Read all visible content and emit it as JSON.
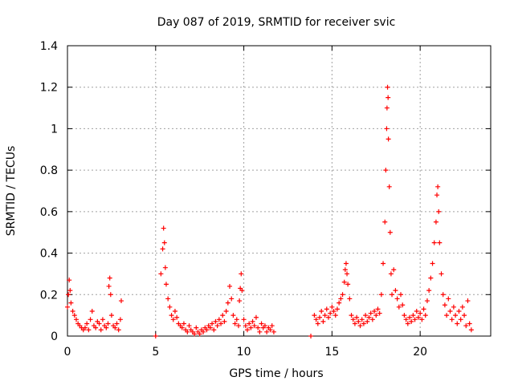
{
  "chart_data": {
    "type": "scatter",
    "title": "Day 087 of 2019, SRMTID for receiver svic",
    "xlabel": "GPS time / hours",
    "ylabel": "SRMTID / TECUs",
    "xlim": [
      0,
      24
    ],
    "ylim": [
      0,
      1.4
    ],
    "xticks": [
      0,
      5,
      10,
      15,
      20
    ],
    "xtick_labels": [
      "0",
      "5",
      "10",
      "15",
      "20"
    ],
    "yticks": [
      0,
      0.2,
      0.4,
      0.6,
      0.8,
      1.0,
      1.2,
      1.4
    ],
    "ytick_labels": [
      "0",
      "0.2",
      "0.4",
      "0.6",
      "0.8",
      "1",
      "1.2",
      "1.4"
    ],
    "grid": true,
    "marker": "+",
    "color": "#ff0000",
    "series": [
      {
        "name": "SRMTID",
        "points": [
          [
            0.0,
            0.14
          ],
          [
            0.05,
            0.2
          ],
          [
            0.1,
            0.27
          ],
          [
            0.15,
            0.22
          ],
          [
            0.2,
            0.16
          ],
          [
            0.3,
            0.12
          ],
          [
            0.4,
            0.1
          ],
          [
            0.5,
            0.08
          ],
          [
            0.6,
            0.06
          ],
          [
            0.7,
            0.05
          ],
          [
            0.8,
            0.04
          ],
          [
            0.9,
            0.03
          ],
          [
            1.0,
            0.04
          ],
          [
            1.1,
            0.06
          ],
          [
            1.2,
            0.03
          ],
          [
            1.3,
            0.08
          ],
          [
            1.4,
            0.12
          ],
          [
            1.5,
            0.05
          ],
          [
            1.6,
            0.04
          ],
          [
            1.7,
            0.07
          ],
          [
            1.8,
            0.06
          ],
          [
            1.9,
            0.03
          ],
          [
            2.0,
            0.08
          ],
          [
            2.1,
            0.05
          ],
          [
            2.2,
            0.04
          ],
          [
            2.3,
            0.06
          ],
          [
            2.35,
            0.24
          ],
          [
            2.4,
            0.28
          ],
          [
            2.45,
            0.2
          ],
          [
            2.5,
            0.1
          ],
          [
            2.6,
            0.05
          ],
          [
            2.7,
            0.04
          ],
          [
            2.8,
            0.06
          ],
          [
            2.9,
            0.03
          ],
          [
            3.0,
            0.08
          ],
          [
            3.05,
            0.17
          ],
          [
            5.0,
            0.0
          ],
          [
            5.3,
            0.3
          ],
          [
            5.4,
            0.42
          ],
          [
            5.45,
            0.52
          ],
          [
            5.5,
            0.45
          ],
          [
            5.55,
            0.33
          ],
          [
            5.6,
            0.25
          ],
          [
            5.7,
            0.18
          ],
          [
            5.8,
            0.14
          ],
          [
            5.9,
            0.1
          ],
          [
            6.0,
            0.08
          ],
          [
            6.1,
            0.12
          ],
          [
            6.2,
            0.09
          ],
          [
            6.3,
            0.06
          ],
          [
            6.4,
            0.05
          ],
          [
            6.5,
            0.04
          ],
          [
            6.6,
            0.06
          ],
          [
            6.7,
            0.03
          ],
          [
            6.8,
            0.02
          ],
          [
            6.9,
            0.05
          ],
          [
            7.0,
            0.03
          ],
          [
            7.1,
            0.02
          ],
          [
            7.2,
            0.01
          ],
          [
            7.3,
            0.04
          ],
          [
            7.4,
            0.02
          ],
          [
            7.5,
            0.01
          ],
          [
            7.6,
            0.03
          ],
          [
            7.7,
            0.02
          ],
          [
            7.8,
            0.04
          ],
          [
            7.9,
            0.03
          ],
          [
            8.0,
            0.05
          ],
          [
            8.1,
            0.04
          ],
          [
            8.2,
            0.06
          ],
          [
            8.3,
            0.03
          ],
          [
            8.4,
            0.07
          ],
          [
            8.5,
            0.05
          ],
          [
            8.6,
            0.08
          ],
          [
            8.7,
            0.06
          ],
          [
            8.8,
            0.1
          ],
          [
            8.9,
            0.07
          ],
          [
            9.0,
            0.12
          ],
          [
            9.1,
            0.16
          ],
          [
            9.2,
            0.24
          ],
          [
            9.3,
            0.18
          ],
          [
            9.4,
            0.1
          ],
          [
            9.5,
            0.06
          ],
          [
            9.6,
            0.08
          ],
          [
            9.7,
            0.05
          ],
          [
            9.75,
            0.17
          ],
          [
            9.8,
            0.23
          ],
          [
            9.85,
            0.3
          ],
          [
            9.9,
            0.22
          ],
          [
            10.0,
            0.08
          ],
          [
            10.1,
            0.05
          ],
          [
            10.2,
            0.03
          ],
          [
            10.3,
            0.06
          ],
          [
            10.4,
            0.04
          ],
          [
            10.5,
            0.07
          ],
          [
            10.6,
            0.05
          ],
          [
            10.7,
            0.09
          ],
          [
            10.8,
            0.04
          ],
          [
            10.9,
            0.02
          ],
          [
            11.0,
            0.06
          ],
          [
            11.1,
            0.04
          ],
          [
            11.2,
            0.05
          ],
          [
            11.3,
            0.02
          ],
          [
            11.4,
            0.04
          ],
          [
            11.5,
            0.03
          ],
          [
            11.6,
            0.05
          ],
          [
            11.7,
            0.02
          ],
          [
            13.8,
            0.0
          ],
          [
            14.0,
            0.1
          ],
          [
            14.1,
            0.08
          ],
          [
            14.2,
            0.06
          ],
          [
            14.3,
            0.09
          ],
          [
            14.4,
            0.12
          ],
          [
            14.5,
            0.07
          ],
          [
            14.6,
            0.1
          ],
          [
            14.7,
            0.13
          ],
          [
            14.8,
            0.09
          ],
          [
            14.9,
            0.11
          ],
          [
            15.0,
            0.14
          ],
          [
            15.1,
            0.12
          ],
          [
            15.2,
            0.1
          ],
          [
            15.3,
            0.13
          ],
          [
            15.4,
            0.16
          ],
          [
            15.5,
            0.18
          ],
          [
            15.6,
            0.2
          ],
          [
            15.7,
            0.26
          ],
          [
            15.75,
            0.32
          ],
          [
            15.8,
            0.35
          ],
          [
            15.85,
            0.3
          ],
          [
            15.9,
            0.25
          ],
          [
            16.0,
            0.18
          ],
          [
            16.1,
            0.1
          ],
          [
            16.2,
            0.08
          ],
          [
            16.3,
            0.06
          ],
          [
            16.4,
            0.09
          ],
          [
            16.5,
            0.07
          ],
          [
            16.6,
            0.05
          ],
          [
            16.7,
            0.08
          ],
          [
            16.8,
            0.06
          ],
          [
            16.9,
            0.1
          ],
          [
            17.0,
            0.07
          ],
          [
            17.1,
            0.09
          ],
          [
            17.2,
            0.11
          ],
          [
            17.3,
            0.08
          ],
          [
            17.4,
            0.12
          ],
          [
            17.5,
            0.1
          ],
          [
            17.6,
            0.13
          ],
          [
            17.7,
            0.11
          ],
          [
            17.8,
            0.2
          ],
          [
            17.9,
            0.35
          ],
          [
            18.0,
            0.55
          ],
          [
            18.05,
            0.8
          ],
          [
            18.1,
            1.0
          ],
          [
            18.12,
            1.1
          ],
          [
            18.15,
            1.2
          ],
          [
            18.18,
            1.15
          ],
          [
            18.2,
            0.95
          ],
          [
            18.25,
            0.72
          ],
          [
            18.3,
            0.5
          ],
          [
            18.35,
            0.3
          ],
          [
            18.4,
            0.2
          ],
          [
            18.5,
            0.32
          ],
          [
            18.6,
            0.22
          ],
          [
            18.7,
            0.18
          ],
          [
            18.8,
            0.14
          ],
          [
            18.9,
            0.2
          ],
          [
            19.0,
            0.15
          ],
          [
            19.1,
            0.1
          ],
          [
            19.2,
            0.08
          ],
          [
            19.3,
            0.06
          ],
          [
            19.4,
            0.09
          ],
          [
            19.5,
            0.07
          ],
          [
            19.6,
            0.1
          ],
          [
            19.7,
            0.08
          ],
          [
            19.8,
            0.12
          ],
          [
            19.9,
            0.09
          ],
          [
            20.0,
            0.11
          ],
          [
            20.1,
            0.08
          ],
          [
            20.2,
            0.13
          ],
          [
            20.3,
            0.1
          ],
          [
            20.4,
            0.17
          ],
          [
            20.5,
            0.22
          ],
          [
            20.6,
            0.28
          ],
          [
            20.7,
            0.35
          ],
          [
            20.8,
            0.45
          ],
          [
            20.9,
            0.55
          ],
          [
            20.95,
            0.68
          ],
          [
            21.0,
            0.72
          ],
          [
            21.05,
            0.6
          ],
          [
            21.1,
            0.45
          ],
          [
            21.2,
            0.3
          ],
          [
            21.3,
            0.2
          ],
          [
            21.4,
            0.15
          ],
          [
            21.5,
            0.1
          ],
          [
            21.6,
            0.18
          ],
          [
            21.7,
            0.12
          ],
          [
            21.8,
            0.08
          ],
          [
            21.9,
            0.14
          ],
          [
            22.0,
            0.1
          ],
          [
            22.1,
            0.06
          ],
          [
            22.2,
            0.12
          ],
          [
            22.3,
            0.08
          ],
          [
            22.4,
            0.14
          ],
          [
            22.5,
            0.1
          ],
          [
            22.6,
            0.05
          ],
          [
            22.7,
            0.17
          ],
          [
            22.8,
            0.06
          ],
          [
            22.9,
            0.03
          ]
        ]
      }
    ]
  }
}
